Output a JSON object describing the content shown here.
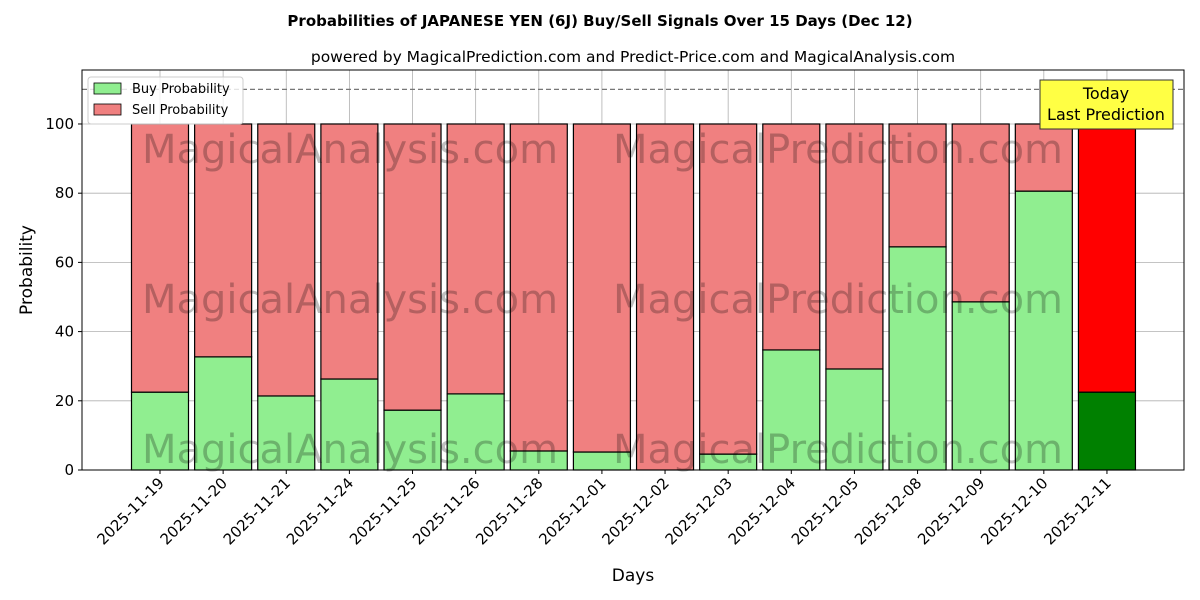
{
  "chart_data": {
    "type": "bar",
    "stacked": true,
    "title": "Probabilities of JAPANESE YEN (6J) Buy/Sell Signals Over 15 Days (Dec 12)",
    "subtitle": "powered by MagicalPrediction.com and Predict-Price.com and MagicalAnalysis.com",
    "xlabel": "Days",
    "ylabel": "Probability",
    "ylim": [
      0,
      115.6
    ],
    "yticks": [
      0,
      20,
      40,
      60,
      80,
      100
    ],
    "grid": true,
    "legend_placement": "top-left",
    "categories": [
      "2025-11-19",
      "2025-11-20",
      "2025-11-21",
      "2025-11-24",
      "2025-11-25",
      "2025-11-26",
      "2025-11-28",
      "2025-12-01",
      "2025-12-02",
      "2025-12-03",
      "2025-12-04",
      "2025-12-05",
      "2025-12-08",
      "2025-12-09",
      "2025-12-10",
      "2025-12-11"
    ],
    "series": [
      {
        "name": "Buy Probability",
        "color": "#90EE90",
        "highlight_color": "#008000",
        "values": [
          22.5,
          32.7,
          21.4,
          26.3,
          17.3,
          22.0,
          5.5,
          5.2,
          0.0,
          4.6,
          34.7,
          29.2,
          64.5,
          48.6,
          80.6,
          22.5
        ]
      },
      {
        "name": "Sell Probability",
        "color": "#F08080",
        "highlight_color": "#FF0000",
        "values": [
          77.5,
          67.3,
          78.6,
          73.7,
          82.7,
          78.0,
          94.5,
          94.8,
          100.0,
          95.4,
          65.3,
          70.8,
          35.5,
          51.4,
          19.4,
          77.5
        ]
      }
    ],
    "reference_line": {
      "value": 110,
      "style": "dashed"
    },
    "annotation": {
      "line1": "Today",
      "line2": "Last Prediction",
      "color": "#FFFF44"
    },
    "watermarks": [
      "MagicalAnalysis.com",
      "MagicalPrediction.com"
    ]
  }
}
